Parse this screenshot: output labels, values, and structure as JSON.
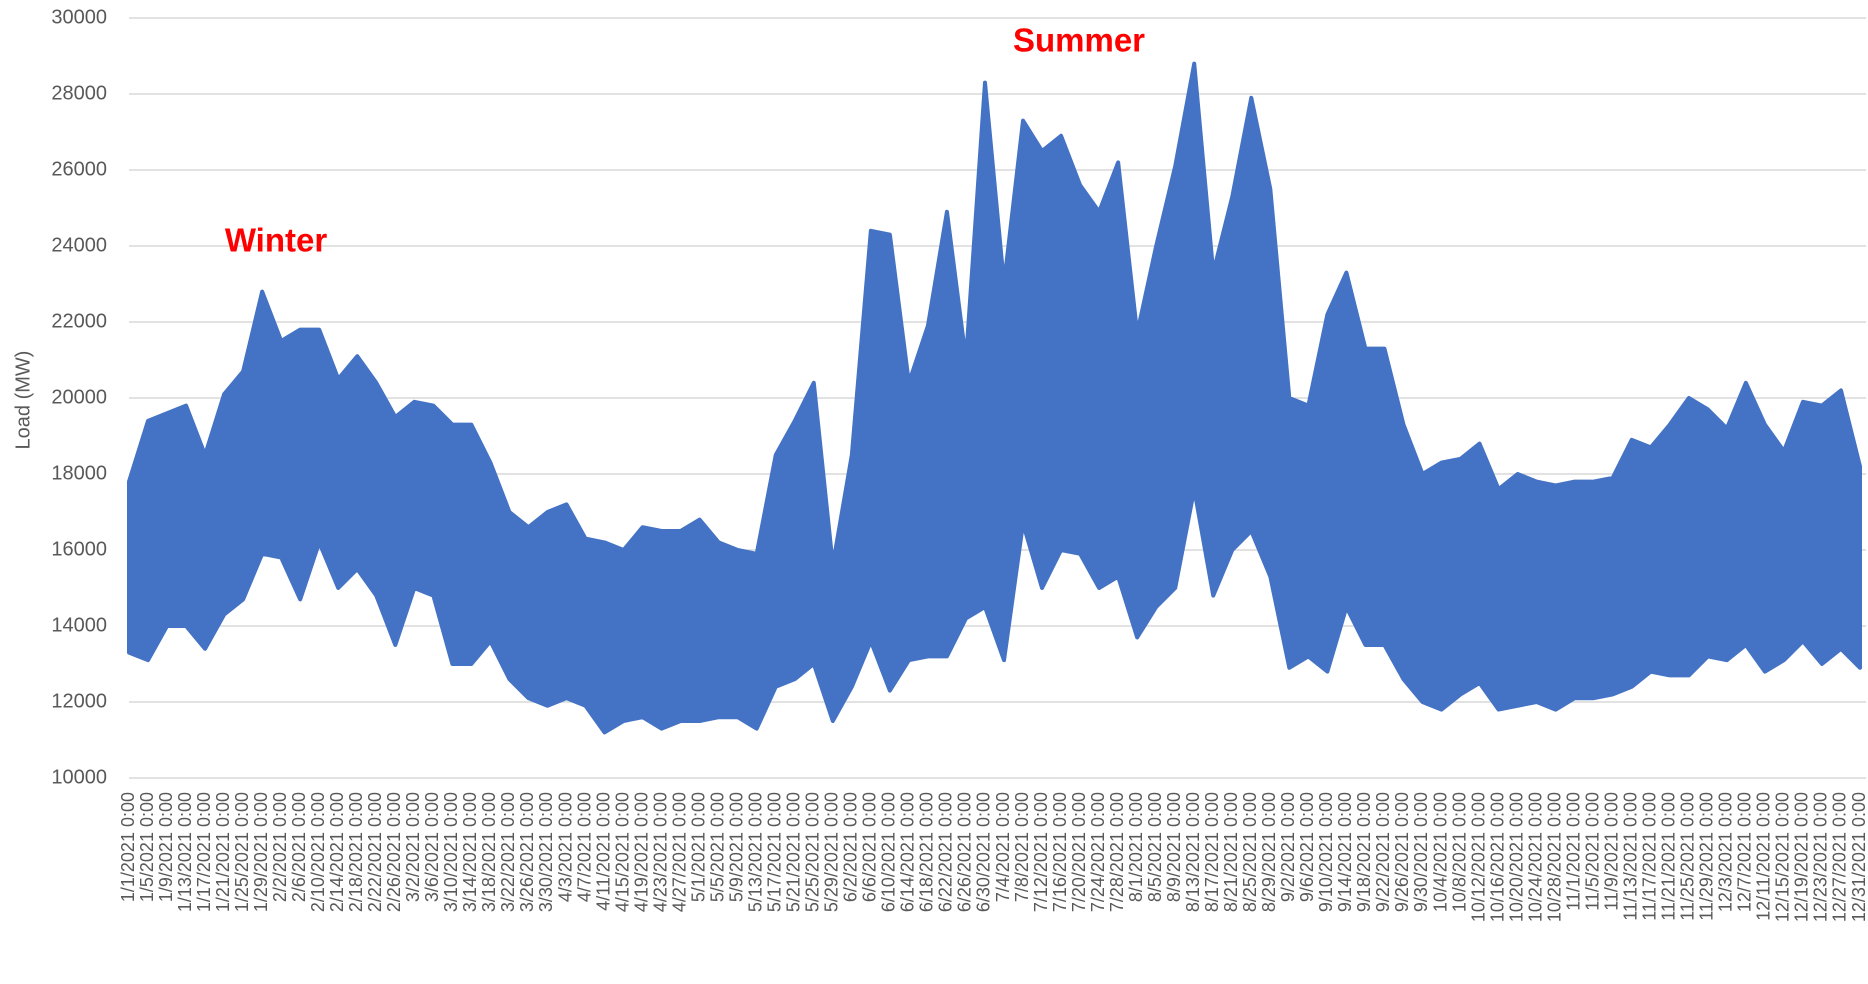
{
  "chart_data": {
    "type": "range-area",
    "ylabel": "Load (MW)",
    "annotations": [
      "Winter",
      "Summer"
    ],
    "categories": [
      "1/1/2021 0:00",
      "1/5/2021 0:00",
      "1/9/2021 0:00",
      "1/13/2021 0:00",
      "1/17/2021 0:00",
      "1/21/2021 0:00",
      "1/25/2021 0:00",
      "1/29/2021 0:00",
      "2/2/2021 0:00",
      "2/6/2021 0:00",
      "2/10/2021 0:00",
      "2/14/2021 0:00",
      "2/18/2021 0:00",
      "2/22/2021 0:00",
      "2/26/2021 0:00",
      "3/2/2021 0:00",
      "3/6/2021 0:00",
      "3/10/2021 0:00",
      "3/14/2021 0:00",
      "3/18/2021 0:00",
      "3/22/2021 0:00",
      "3/26/2021 0:00",
      "3/30/2021 0:00",
      "4/3/2021 0:00",
      "4/7/2021 0:00",
      "4/11/2021 0:00",
      "4/15/2021 0:00",
      "4/19/2021 0:00",
      "4/23/2021 0:00",
      "4/27/2021 0:00",
      "5/1/2021 0:00",
      "5/5/2021 0:00",
      "5/9/2021 0:00",
      "5/13/2021 0:00",
      "5/17/2021 0:00",
      "5/21/2021 0:00",
      "5/25/2021 0:00",
      "5/29/2021 0:00",
      "6/2/2021 0:00",
      "6/6/2021 0:00",
      "6/10/2021 0:00",
      "6/14/2021 0:00",
      "6/18/2021 0:00",
      "6/22/2021 0:00",
      "6/26/2021 0:00",
      "6/30/2021 0:00",
      "7/4/2021 0:00",
      "7/8/2021 0:00",
      "7/12/2021 0:00",
      "7/16/2021 0:00",
      "7/20/2021 0:00",
      "7/24/2021 0:00",
      "7/28/2021 0:00",
      "8/1/2021 0:00",
      "8/5/2021 0:00",
      "8/9/2021 0:00",
      "8/13/2021 0:00",
      "8/17/2021 0:00",
      "8/21/2021 0:00",
      "8/25/2021 0:00",
      "8/29/2021 0:00",
      "9/2/2021 0:00",
      "9/6/2021 0:00",
      "9/10/2021 0:00",
      "9/14/2021 0:00",
      "9/18/2021 0:00",
      "9/22/2021 0:00",
      "9/26/2021 0:00",
      "9/30/2021 0:00",
      "10/4/2021 0:00",
      "10/8/2021 0:00",
      "10/12/2021 0:00",
      "10/16/2021 0:00",
      "10/20/2021 0:00",
      "10/24/2021 0:00",
      "10/28/2021 0:00",
      "11/1/2021 0:00",
      "11/5/2021 0:00",
      "11/9/2021 0:00",
      "11/13/2021 0:00",
      "11/17/2021 0:00",
      "11/21/2021 0:00",
      "11/25/2021 0:00",
      "11/29/2021 0:00",
      "12/3/2021 0:00",
      "12/7/2021 0:00",
      "12/11/2021 0:00",
      "12/15/2021 0:00",
      "12/19/2021 0:00",
      "12/23/2021 0:00",
      "12/27/2021 0:00",
      "12/31/2021 0:00"
    ],
    "series": [
      {
        "color": "#4472c4",
        "values": [
          17800,
          19400,
          19600,
          19800,
          18500,
          20100,
          20700,
          22800,
          21500,
          21800,
          21800,
          20500,
          21100,
          20400,
          19500,
          19900,
          19800,
          19300,
          19300,
          18300,
          17000,
          16600,
          17000,
          17200,
          16300,
          16200,
          16000,
          16600,
          16500,
          16500,
          16800,
          16200,
          16000,
          15900,
          18500,
          19400,
          20400,
          15600,
          18500,
          24400,
          24300,
          20400,
          21900,
          24900,
          21000,
          28300,
          23000,
          27300,
          26500,
          26900,
          25600,
          24900,
          26200,
          21700,
          24000,
          26100,
          28800,
          23300,
          25300,
          27900,
          25500,
          20000,
          19800,
          22200,
          23300,
          21300,
          21300,
          19300,
          18000,
          18300,
          18400,
          18800,
          17600,
          18000,
          17800,
          17700,
          17800,
          17800,
          17900,
          18900,
          18700,
          19300,
          20000,
          19700,
          19200,
          20400,
          19300,
          18600,
          19900,
          19800,
          20200,
          18200
        ]
      },
      {
        "color": "#4472c4",
        "values": [
          13300,
          13100,
          14000,
          14000,
          13400,
          14300,
          14700,
          15900,
          15800,
          14700,
          16200,
          15000,
          15500,
          14800,
          13500,
          15000,
          14800,
          13000,
          13000,
          13600,
          12600,
          12100,
          11900,
          12100,
          11900,
          11200,
          11500,
          11600,
          11300,
          11500,
          11500,
          11600,
          11600,
          11300,
          12400,
          12600,
          13000,
          11500,
          12400,
          13600,
          12300,
          13100,
          13200,
          13200,
          14200,
          14500,
          13100,
          16700,
          15000,
          16000,
          15900,
          15000,
          15300,
          13700,
          14500,
          15000,
          17600,
          14800,
          16000,
          16500,
          15300,
          12900,
          13200,
          12800,
          14500,
          13500,
          13500,
          12600,
          12000,
          11800,
          12200,
          12500,
          11800,
          11900,
          12000,
          11800,
          12100,
          12100,
          12200,
          12400,
          12800,
          12700,
          12700,
          13200,
          13100,
          13500,
          12800,
          13100,
          13600,
          13000,
          13400,
          12900
        ]
      }
    ],
    "ylim": [
      10000,
      30000
    ],
    "yticks": [
      10000,
      12000,
      14000,
      16000,
      18000,
      20000,
      22000,
      24000,
      26000,
      28000,
      30000
    ],
    "grid": true
  }
}
